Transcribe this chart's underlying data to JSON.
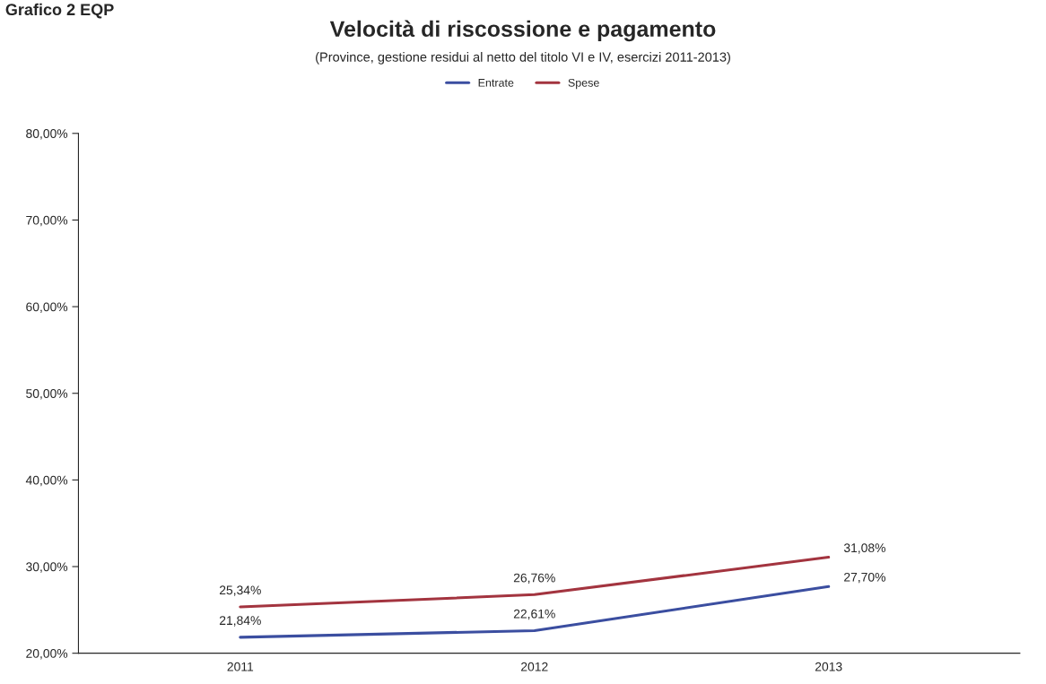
{
  "chart_data": {
    "type": "line",
    "title": "Velocità di riscossione e pagamento",
    "subtitle": "(Province, gestione residui al netto del titolo VI e IV, esercizi 2011-2013)",
    "annotations": [
      "Grafico 2 EQP"
    ],
    "categories": [
      "2011",
      "2012",
      "2013"
    ],
    "series": [
      {
        "name": "Entrate",
        "color": "#3b4ea0",
        "values": [
          21.84,
          22.61,
          27.7
        ],
        "value_labels": [
          "21,84%",
          "22,61%",
          "27,70%"
        ]
      },
      {
        "name": "Spese",
        "color": "#a3343f",
        "values": [
          25.34,
          26.76,
          31.08
        ],
        "value_labels": [
          "25,34%",
          "26,76%",
          "31,08%"
        ]
      }
    ],
    "ylim": [
      20,
      80
    ],
    "yticks": [
      {
        "value": 20,
        "label": "20,00%"
      },
      {
        "value": 30,
        "label": "30,00%"
      },
      {
        "value": 40,
        "label": "40,00%"
      },
      {
        "value": 50,
        "label": "50,00%"
      },
      {
        "value": 60,
        "label": "60,00%"
      },
      {
        "value": 70,
        "label": "70,00%"
      },
      {
        "value": 80,
        "label": "80,00%"
      }
    ],
    "grid": false,
    "legend": "top",
    "marker": "none",
    "line_style": "solid"
  }
}
